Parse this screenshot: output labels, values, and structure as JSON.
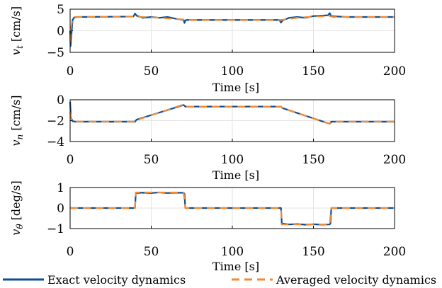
{
  "colors": {
    "exact": "#0b4f9a",
    "averaged": "#f08a33",
    "grid": "#e3e3e3"
  },
  "legend": {
    "exact_label": "Exact velocity dynamics",
    "averaged_label": "Averaged velocity dynamics",
    "placement": "bottom"
  },
  "chart_data": [
    {
      "type": "line",
      "ylabel_var": "v",
      "ylabel_sub": "t",
      "ylabel_unit": "[cm/s]",
      "xlabel": "Time [s]",
      "xlim": [
        0,
        200
      ],
      "ylim": [
        -5,
        5
      ],
      "xticks": [
        "0",
        "50",
        "100",
        "150",
        "200"
      ],
      "yticks": [
        "5",
        "0",
        "−5"
      ],
      "ytick_values": [
        5,
        0,
        -5
      ],
      "grid": true,
      "series": [
        {
          "key": "exact",
          "x": [
            0,
            0.3,
            0.8,
            1.5,
            2.5,
            5,
            39,
            40,
            41,
            45,
            50,
            55,
            60,
            65,
            70,
            70.5,
            71,
            72,
            100,
            129,
            130,
            131,
            135,
            140,
            145,
            150,
            155,
            159,
            160,
            161,
            170,
            200
          ],
          "y": [
            0,
            -3.5,
            -1,
            2.5,
            3.1,
            3.2,
            3.3,
            4.0,
            3.5,
            3.0,
            3.2,
            3.0,
            3.2,
            2.8,
            2.5,
            1.8,
            2.4,
            2.5,
            2.5,
            2.5,
            1.9,
            2.4,
            3.0,
            3.2,
            3.0,
            3.4,
            3.5,
            3.6,
            4.1,
            3.4,
            3.2,
            3.2
          ]
        },
        {
          "key": "averaged",
          "x": [
            0,
            0.5,
            1.5,
            3,
            40,
            55,
            70,
            72,
            100,
            130,
            140,
            150,
            160,
            162,
            200
          ],
          "y": [
            -2.5,
            0.5,
            2.8,
            3.2,
            3.3,
            3.0,
            2.6,
            2.5,
            2.5,
            2.5,
            3.0,
            3.3,
            3.4,
            3.2,
            3.2
          ]
        }
      ]
    },
    {
      "type": "line",
      "ylabel_var": "v",
      "ylabel_sub": "n",
      "ylabel_unit": "[cm/s]",
      "xlabel": "Time [s]",
      "xlim": [
        0,
        200
      ],
      "ylim": [
        -4,
        0
      ],
      "xticks": [
        "0",
        "50",
        "100",
        "150",
        "200"
      ],
      "yticks": [
        "0",
        "−2",
        "−4"
      ],
      "ytick_values": [
        0,
        -2,
        -4
      ],
      "grid": true,
      "series": [
        {
          "key": "exact",
          "x": [
            0,
            0.5,
            1.5,
            3,
            40,
            41,
            70,
            71,
            100,
            130,
            131,
            160,
            161,
            200
          ],
          "y": [
            -0.2,
            -1.7,
            -2.05,
            -2.1,
            -2.1,
            -1.9,
            -0.5,
            -0.65,
            -0.65,
            -0.65,
            -0.8,
            -2.3,
            -2.1,
            -2.1
          ]
        },
        {
          "key": "averaged",
          "x": [
            0,
            1,
            3,
            40,
            41,
            70,
            71,
            130,
            131,
            160,
            162,
            200
          ],
          "y": [
            -1.2,
            -2.0,
            -2.1,
            -2.1,
            -1.95,
            -0.45,
            -0.65,
            -0.65,
            -0.8,
            -2.3,
            -2.1,
            -2.1
          ]
        }
      ]
    },
    {
      "type": "line",
      "ylabel_var": "v",
      "ylabel_sub": "θ",
      "ylabel_unit": "[deg/s]",
      "xlabel": "Time [s]",
      "xlim": [
        0,
        200
      ],
      "ylim": [
        -1,
        1
      ],
      "xticks": [
        "0",
        "50",
        "100",
        "150",
        "200"
      ],
      "yticks": [
        "1",
        "0",
        "−1"
      ],
      "ytick_values": [
        1,
        0,
        -1
      ],
      "grid": true,
      "series": [
        {
          "key": "exact",
          "x": [
            0,
            40,
            40.5,
            45,
            50,
            55,
            60,
            65,
            70,
            70.5,
            71,
            130,
            130.5,
            135,
            140,
            145,
            150,
            155,
            160,
            160.5,
            161,
            200
          ],
          "y": [
            0,
            0,
            0.73,
            0.75,
            0.73,
            0.76,
            0.73,
            0.75,
            0.74,
            0.7,
            0,
            0,
            -0.75,
            -0.8,
            -0.78,
            -0.81,
            -0.79,
            -0.81,
            -0.8,
            -0.75,
            0,
            0
          ]
        },
        {
          "key": "averaged",
          "x": [
            0,
            40,
            40.5,
            70,
            71,
            130,
            130.5,
            160,
            161,
            200
          ],
          "y": [
            0,
            0,
            0.76,
            0.76,
            0,
            0,
            -0.8,
            -0.8,
            0,
            0
          ]
        }
      ]
    }
  ]
}
